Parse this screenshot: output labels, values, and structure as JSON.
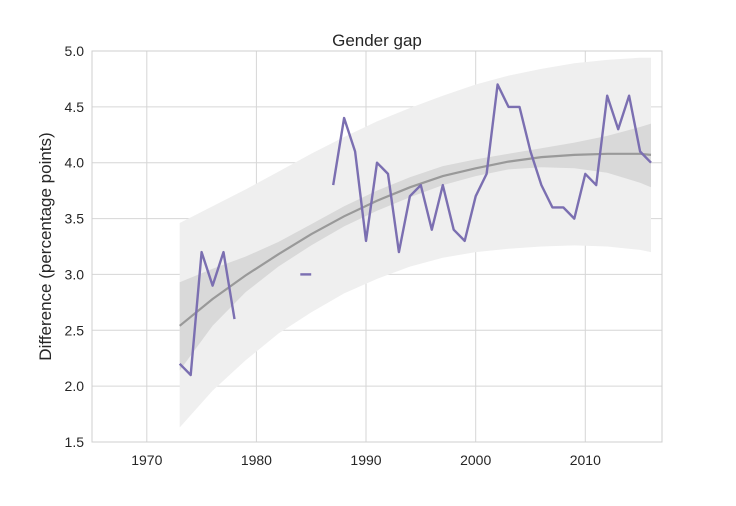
{
  "chart_data": {
    "type": "line",
    "title": "Gender gap",
    "xlabel": "",
    "ylabel": "Difference (percentage points)",
    "xlim": [
      1965,
      2017
    ],
    "ylim": [
      1.5,
      5.0
    ],
    "grid": true,
    "xticks": [
      1970,
      1980,
      1990,
      2000,
      2010
    ],
    "yticks": [
      1.5,
      2.0,
      2.5,
      3.0,
      3.5,
      4.0,
      4.5,
      5.0
    ],
    "colors": {
      "series": "#7b6fb1",
      "fit": "#999999",
      "ci_inner": "#d9d9d9",
      "ci_outer": "#efefef",
      "grid": "#d6d6d6"
    },
    "series": [
      {
        "x": [
          1973,
          1974,
          1975,
          1976,
          1977,
          1978,
          null,
          1984,
          1985,
          null,
          1987,
          1988,
          1989,
          1990,
          1991,
          1992,
          1993,
          1994,
          1995,
          1996,
          1997,
          1998,
          1999,
          2000,
          2001,
          2002,
          2003,
          2004,
          2005,
          2006,
          2007,
          2008,
          2009,
          2010,
          2011,
          2012,
          2013,
          2014,
          2015,
          2016
        ],
        "y": [
          2.2,
          2.1,
          3.2,
          2.9,
          3.2,
          2.6,
          null,
          3.0,
          3.0,
          null,
          3.8,
          4.4,
          4.1,
          3.3,
          4.0,
          3.9,
          3.2,
          3.7,
          3.8,
          3.4,
          3.8,
          3.4,
          3.3,
          3.7,
          3.9,
          4.7,
          4.5,
          4.5,
          4.1,
          3.8,
          3.6,
          3.6,
          3.5,
          3.9,
          3.8,
          4.6,
          4.3,
          4.6,
          4.1,
          4.0
        ]
      }
    ],
    "fit": {
      "x": [
        1973,
        1976,
        1979,
        1982,
        1985,
        1988,
        1991,
        1994,
        1997,
        2000,
        2003,
        2006,
        2009,
        2012,
        2015,
        2016
      ],
      "y": [
        2.54,
        2.78,
        2.99,
        3.18,
        3.36,
        3.52,
        3.66,
        3.78,
        3.88,
        3.95,
        4.01,
        4.05,
        4.07,
        4.08,
        4.08,
        4.07
      ],
      "ci_inner_lower": [
        2.14,
        2.54,
        2.84,
        3.07,
        3.26,
        3.43,
        3.57,
        3.69,
        3.8,
        3.88,
        3.94,
        3.96,
        3.95,
        3.91,
        3.82,
        3.78
      ],
      "ci_inner_upper": [
        2.93,
        3.05,
        3.16,
        3.29,
        3.45,
        3.61,
        3.75,
        3.87,
        3.97,
        4.03,
        4.08,
        4.13,
        4.18,
        4.24,
        4.32,
        4.35
      ],
      "ci_outer_lower": [
        1.63,
        1.96,
        2.23,
        2.47,
        2.66,
        2.83,
        2.96,
        3.07,
        3.15,
        3.2,
        3.23,
        3.25,
        3.26,
        3.25,
        3.22,
        3.2
      ],
      "ci_outer_upper": [
        3.46,
        3.61,
        3.76,
        3.92,
        4.08,
        4.23,
        4.37,
        4.49,
        4.6,
        4.7,
        4.78,
        4.84,
        4.89,
        4.92,
        4.94,
        4.94
      ]
    }
  }
}
